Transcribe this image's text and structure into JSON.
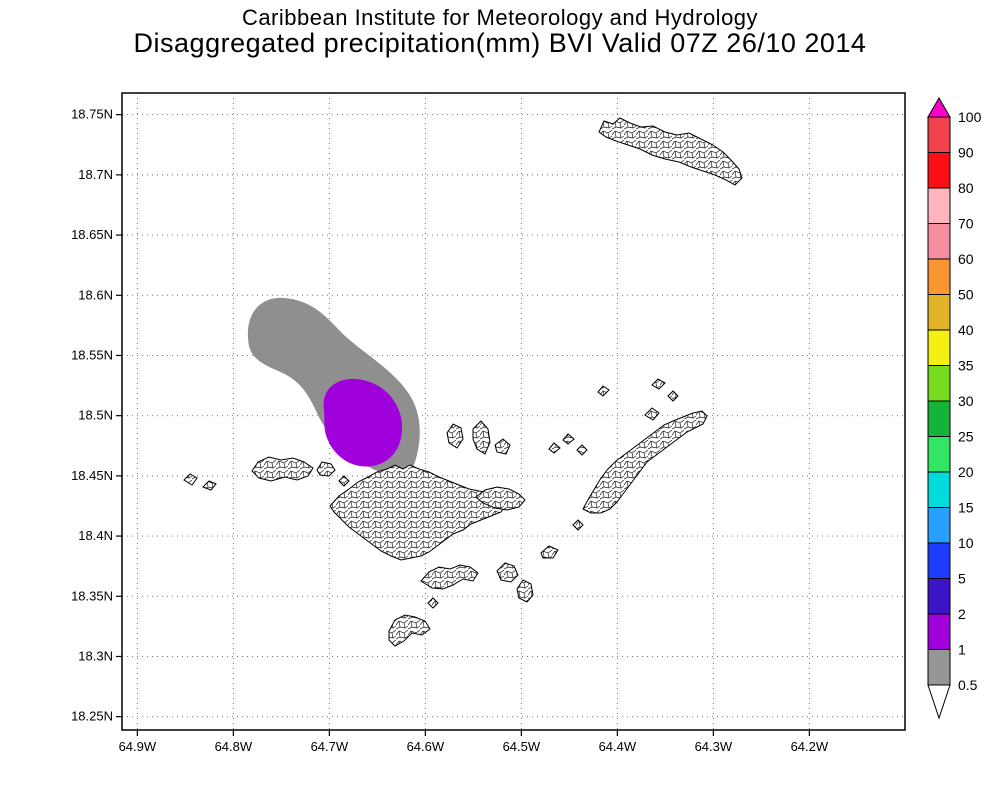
{
  "title": {
    "line1": "Caribbean Institute for Meteorology and Hydrology",
    "line2": "Disaggregated precipitation(mm) BVI Valid 07Z 26/10 2014"
  },
  "axes": {
    "lat_ticks": [
      {
        "value": 18.75,
        "label": "18.75N"
      },
      {
        "value": 18.7,
        "label": "18.7N"
      },
      {
        "value": 18.65,
        "label": "18.65N"
      },
      {
        "value": 18.6,
        "label": "18.6N"
      },
      {
        "value": 18.55,
        "label": "18.55N"
      },
      {
        "value": 18.5,
        "label": "18.5N"
      },
      {
        "value": 18.45,
        "label": "18.45N"
      },
      {
        "value": 18.4,
        "label": "18.4N"
      },
      {
        "value": 18.35,
        "label": "18.35N"
      },
      {
        "value": 18.3,
        "label": "18.3N"
      },
      {
        "value": 18.25,
        "label": "18.25N"
      }
    ],
    "lon_ticks": [
      {
        "value": 64.9,
        "label": "64.9W"
      },
      {
        "value": 64.8,
        "label": "64.8W"
      },
      {
        "value": 64.7,
        "label": "64.7W"
      },
      {
        "value": 64.6,
        "label": "64.6W"
      },
      {
        "value": 64.5,
        "label": "64.5W"
      },
      {
        "value": 64.4,
        "label": "64.4W"
      },
      {
        "value": 64.3,
        "label": "64.3W"
      },
      {
        "value": 64.2,
        "label": "64.2W"
      }
    ],
    "grid_style": "dotted"
  },
  "colorbar": {
    "unit": "mm",
    "labels_top_to_bottom": [
      "100",
      "90",
      "80",
      "70",
      "60",
      "50",
      "40",
      "35",
      "30",
      "25",
      "20",
      "15",
      "10",
      "5",
      "2",
      "1",
      "0.5"
    ],
    "band_colors_top_to_bottom": [
      "#F0414D",
      "#FA0F14",
      "#FFB4BE",
      "#F58CA0",
      "#FA9632",
      "#E1B428",
      "#F5F014",
      "#78DC1E",
      "#14B43C",
      "#32E664",
      "#00DCDC",
      "#28A0FF",
      "#1E3CFF",
      "#3C14C8",
      "#A000DC",
      "#969696"
    ],
    "top_arrow_color": "#FA00C8",
    "bottom_arrow_color": "#FFFFFF"
  },
  "precipitation": {
    "units": "mm",
    "regions": [
      {
        "range_mm": "0.5-1",
        "color": "#8F8F8F",
        "approx_center": "64.72W, 18.54N"
      },
      {
        "range_mm": "1-2",
        "color": "#A000DC",
        "approx_center": "64.66W, 18.50N"
      }
    ]
  }
}
